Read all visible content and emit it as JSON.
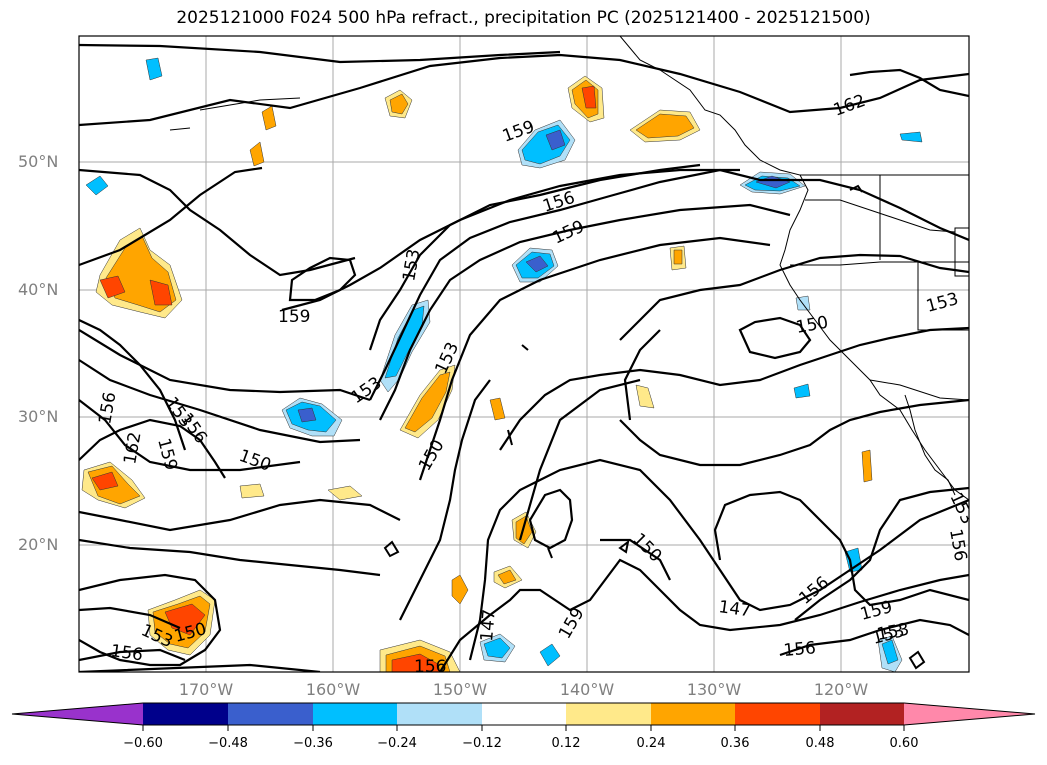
{
  "title": "2025121000 F024 500 hPa refract., precipitation PC (2025121400 - 2025121500)",
  "lat_labels": [
    "50°N",
    "40°N",
    "30°N",
    "20°N"
  ],
  "lon_labels": [
    "170°W",
    "160°W",
    "150°W",
    "140°W",
    "130°W",
    "120°W"
  ],
  "contour_labels": [
    "162",
    "159",
    "156",
    "159",
    "153",
    "159",
    "153",
    "153",
    "150",
    "153",
    "156",
    "153",
    "162",
    "159",
    "156",
    "150",
    "150",
    "150",
    "147",
    "147",
    "159",
    "153",
    "150",
    "156",
    "156",
    "156",
    "153",
    "156",
    "159",
    "153",
    "156",
    "153",
    "150",
    "156"
  ],
  "colorbar": {
    "ticks": [
      "−0.60",
      "−0.48",
      "−0.36",
      "−0.24",
      "−0.12",
      "0.12",
      "0.24",
      "0.36",
      "0.48",
      "0.60"
    ],
    "colors": [
      "#9932cc",
      "#00008b",
      "#3a5fcd",
      "#00bfff",
      "#b0e0f8",
      "#ffffff",
      "#ffe98a",
      "#ffa500",
      "#ff4500",
      "#b22222",
      "#ff88aa"
    ]
  },
  "colors": {
    "orange": "#ffa500",
    "yellow": "#ffe98a",
    "red": "#ff4500",
    "lightblue": "#b0e0f8",
    "blue": "#00bfff",
    "royal": "#3a5fcd",
    "purple": "#9932cc"
  }
}
